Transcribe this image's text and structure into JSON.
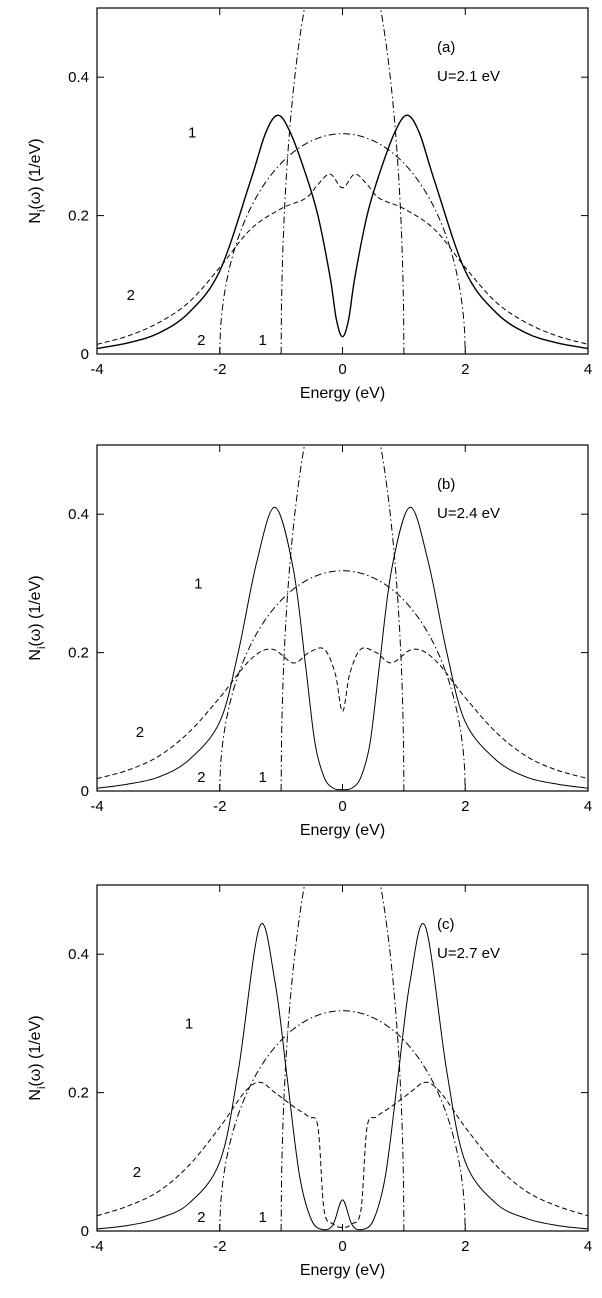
{
  "chart_data": [
    {
      "type": "line",
      "panel_label": "(a)",
      "annotation": "U=2.1 eV",
      "xlabel": "Energy  (eV)",
      "ylabel": "N",
      "ylabel_sub": "i",
      "ylabel_rest": "(ω)  (1/eV)",
      "xlim": [
        -4,
        4
      ],
      "ylim": [
        0,
        0.5
      ],
      "xticks": [
        -4,
        -2,
        0,
        2,
        4
      ],
      "yticks": [
        0,
        0.2,
        0.4
      ],
      "series": [
        {
          "style": "solid",
          "width": 1.4,
          "x": [
            -4.0,
            -3.5,
            -3.0,
            -2.5,
            -2.0,
            -1.5,
            -1.25,
            -1.05,
            -0.85,
            -0.6,
            -0.4,
            -0.2,
            -0.1,
            0.0,
            0.1,
            0.2,
            0.4,
            0.6,
            0.85,
            1.05,
            1.25,
            1.5,
            2.0,
            2.5,
            3.0,
            3.5,
            4.0
          ],
          "y": [
            0.008,
            0.016,
            0.03,
            0.06,
            0.12,
            0.25,
            0.32,
            0.345,
            0.32,
            0.26,
            0.2,
            0.11,
            0.05,
            0.025,
            0.05,
            0.11,
            0.2,
            0.26,
            0.32,
            0.345,
            0.32,
            0.25,
            0.12,
            0.06,
            0.03,
            0.016,
            0.008
          ]
        },
        {
          "style": "dashed",
          "width": 1.0,
          "x": [
            -4.0,
            -3.5,
            -3.0,
            -2.5,
            -2.0,
            -1.5,
            -1.0,
            -0.6,
            -0.4,
            -0.2,
            0.0,
            0.2,
            0.4,
            0.6,
            1.0,
            1.5,
            2.0,
            2.5,
            3.0,
            3.5,
            4.0
          ],
          "y": [
            0.014,
            0.026,
            0.045,
            0.075,
            0.125,
            0.18,
            0.21,
            0.225,
            0.245,
            0.26,
            0.24,
            0.26,
            0.245,
            0.225,
            0.21,
            0.18,
            0.125,
            0.075,
            0.045,
            0.026,
            0.014
          ]
        }
      ],
      "curve_labels": [
        {
          "text": "1",
          "x": -2.45,
          "y": 0.32
        },
        {
          "text": "2",
          "x": -3.45,
          "y": 0.085
        },
        {
          "text": "2",
          "x": -2.3,
          "y": 0.02
        },
        {
          "text": "1",
          "x": -1.3,
          "y": 0.02
        }
      ]
    },
    {
      "type": "line",
      "panel_label": "(b)",
      "annotation": "U=2.4 eV",
      "xlabel": "Energy  (eV)",
      "ylabel": "N",
      "ylabel_sub": "i",
      "ylabel_rest": "(ω)  (1/eV)",
      "xlim": [
        -4,
        4
      ],
      "ylim": [
        0,
        0.5
      ],
      "xticks": [
        -4,
        -2,
        0,
        2,
        4
      ],
      "yticks": [
        0,
        0.2,
        0.4
      ],
      "series": [
        {
          "style": "solid",
          "width": 1.0,
          "x": [
            -4.0,
            -3.5,
            -3.0,
            -2.5,
            -2.0,
            -1.7,
            -1.4,
            -1.1,
            -0.8,
            -0.6,
            -0.45,
            -0.3,
            -0.15,
            0.0,
            0.15,
            0.3,
            0.45,
            0.6,
            0.8,
            1.1,
            1.4,
            1.7,
            2.0,
            2.5,
            3.0,
            3.5,
            4.0
          ],
          "y": [
            0.004,
            0.01,
            0.02,
            0.045,
            0.1,
            0.2,
            0.33,
            0.41,
            0.32,
            0.18,
            0.07,
            0.02,
            0.004,
            0.002,
            0.004,
            0.02,
            0.07,
            0.18,
            0.32,
            0.41,
            0.33,
            0.2,
            0.1,
            0.045,
            0.02,
            0.01,
            0.004
          ]
        },
        {
          "style": "dashed",
          "width": 1.0,
          "x": [
            -4.0,
            -3.5,
            -3.0,
            -2.5,
            -2.0,
            -1.5,
            -1.15,
            -0.8,
            -0.55,
            -0.3,
            -0.12,
            0.0,
            0.12,
            0.3,
            0.55,
            0.8,
            1.15,
            1.5,
            2.0,
            2.5,
            3.0,
            3.5,
            4.0
          ],
          "y": [
            0.018,
            0.03,
            0.05,
            0.085,
            0.135,
            0.19,
            0.205,
            0.185,
            0.2,
            0.205,
            0.17,
            0.115,
            0.17,
            0.205,
            0.2,
            0.185,
            0.205,
            0.19,
            0.135,
            0.085,
            0.05,
            0.03,
            0.018
          ]
        }
      ],
      "curve_labels": [
        {
          "text": "1",
          "x": -2.35,
          "y": 0.3
        },
        {
          "text": "2",
          "x": -3.3,
          "y": 0.085
        },
        {
          "text": "2",
          "x": -2.3,
          "y": 0.02
        },
        {
          "text": "1",
          "x": -1.3,
          "y": 0.02
        }
      ]
    },
    {
      "type": "line",
      "panel_label": "(c)",
      "annotation": "U=2.7 eV",
      "xlabel": "Energy  (eV)",
      "ylabel": "N",
      "ylabel_sub": "i",
      "ylabel_rest": "(ω)  (1/eV)",
      "xlim": [
        -4,
        4
      ],
      "ylim": [
        0,
        0.5
      ],
      "xticks": [
        -4,
        -2,
        0,
        2,
        4
      ],
      "yticks": [
        0,
        0.2,
        0.4
      ],
      "series": [
        {
          "style": "solid",
          "width": 1.0,
          "x": [
            -4.0,
            -3.5,
            -3.0,
            -2.5,
            -2.0,
            -1.7,
            -1.35,
            -1.1,
            -0.9,
            -0.7,
            -0.5,
            -0.3,
            -0.15,
            0.0,
            0.15,
            0.3,
            0.5,
            0.7,
            0.9,
            1.1,
            1.35,
            1.7,
            2.0,
            2.5,
            3.0,
            3.5,
            4.0
          ],
          "y": [
            0.003,
            0.008,
            0.018,
            0.04,
            0.1,
            0.23,
            0.44,
            0.36,
            0.22,
            0.08,
            0.015,
            0.002,
            0.01,
            0.045,
            0.01,
            0.002,
            0.015,
            0.08,
            0.22,
            0.36,
            0.44,
            0.23,
            0.1,
            0.04,
            0.018,
            0.008,
            0.003
          ]
        },
        {
          "style": "dashed",
          "width": 1.0,
          "x": [
            -4.0,
            -3.5,
            -3.0,
            -2.5,
            -2.0,
            -1.6,
            -1.35,
            -1.1,
            -0.8,
            -0.55,
            -0.4,
            -0.3,
            -0.15,
            0.0,
            0.15,
            0.3,
            0.4,
            0.55,
            0.8,
            1.1,
            1.35,
            1.6,
            2.0,
            2.5,
            3.0,
            3.5,
            4.0
          ],
          "y": [
            0.022,
            0.036,
            0.057,
            0.095,
            0.15,
            0.2,
            0.215,
            0.2,
            0.18,
            0.165,
            0.15,
            0.03,
            0.01,
            0.005,
            0.01,
            0.03,
            0.15,
            0.165,
            0.18,
            0.2,
            0.215,
            0.2,
            0.15,
            0.095,
            0.057,
            0.036,
            0.022
          ]
        }
      ],
      "curve_labels": [
        {
          "text": "1",
          "x": -2.5,
          "y": 0.3
        },
        {
          "text": "2",
          "x": -3.35,
          "y": 0.085
        },
        {
          "text": "2",
          "x": -2.3,
          "y": 0.02
        },
        {
          "text": "1",
          "x": -1.3,
          "y": 0.02
        }
      ]
    }
  ]
}
